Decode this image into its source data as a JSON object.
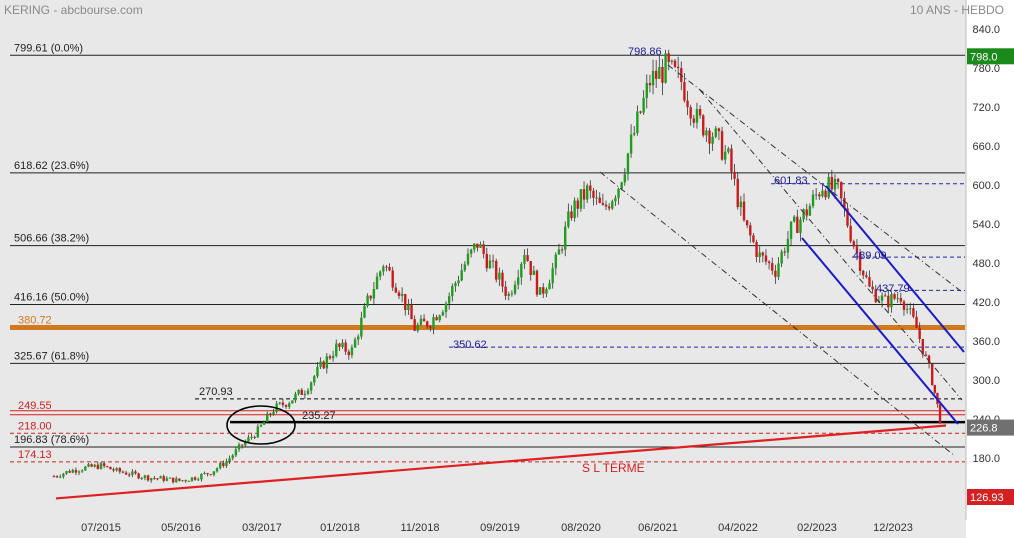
{
  "header": {
    "left": "KERING - abcbourse.com",
    "right": "10 ANS - HEBDO"
  },
  "chart_data": {
    "type": "candlestick",
    "title": "",
    "xlabel": "",
    "ylabel": "",
    "y_ticks": [
      840.0,
      780.0,
      720.0,
      660.0,
      600.0,
      540.0,
      480.0,
      420.0,
      360.0,
      300.0,
      240.0,
      180.0
    ],
    "x_ticks": [
      "07/2015",
      "05/2016",
      "03/2017",
      "01/2018",
      "11/2018",
      "09/2019",
      "08/2020",
      "06/2021",
      "04/2022",
      "02/2023",
      "12/2023"
    ],
    "grid": false,
    "price_badges": [
      {
        "value": "798.0",
        "color": "#1a8a1a"
      },
      {
        "value": "226.8",
        "color": "#707070"
      },
      {
        "value": "126.93",
        "color": "#d42020"
      }
    ],
    "fib_levels": [
      {
        "label": "799.61  (0.0%)",
        "value": 799.61
      },
      {
        "label": "618.62  (23.6%)",
        "value": 618.62
      },
      {
        "label": "506.66  (38.2%)",
        "value": 506.66
      },
      {
        "label": "416.16  (50.0%)",
        "value": 416.16
      },
      {
        "label": "325.67  (61.8%)",
        "value": 325.67
      },
      {
        "label": "196.83  (78.6%)",
        "value": 196.83
      }
    ],
    "horizontal_lines": [
      {
        "label": "380.72",
        "value": 380.72,
        "color": "#d2781e",
        "style": "thick"
      },
      {
        "label": "249.55",
        "value": 249.55,
        "color": "#d42020",
        "style": "double"
      },
      {
        "label": "218.00",
        "value": 218.0,
        "color": "#d42020",
        "style": "dashed"
      },
      {
        "label": "174.13",
        "value": 174.13,
        "color": "#d42020",
        "style": "dashed"
      },
      {
        "label": "270.93",
        "value": 270.93,
        "color": "#000000",
        "style": "dashed"
      },
      {
        "label": "235.27",
        "value": 235.27,
        "color": "#000000",
        "style": "thick"
      }
    ],
    "annotations": [
      {
        "text": "798.86",
        "x": "2021-06",
        "y": 798.86,
        "color": "#1a1a9a"
      },
      {
        "text": "601.83",
        "x": "2022-12",
        "y": 601.83,
        "color": "#1a1a9a"
      },
      {
        "text": "489.09",
        "x": "2023-06",
        "y": 489.09,
        "color": "#1a1a9a"
      },
      {
        "text": "437.79",
        "x": "2023-12",
        "y": 437.79,
        "color": "#1a1a9a"
      },
      {
        "text": "350.62",
        "x": "2019-11",
        "y": 350.62,
        "color": "#1a1a9a"
      },
      {
        "text": "S L TERME",
        "x": "2020-08",
        "y": 172,
        "color": "#d42020"
      }
    ],
    "trend_support": {
      "from": {
        "x": "2015-01",
        "y": 127
      },
      "to": {
        "x": "2024-06",
        "y": 230
      }
    },
    "close_series": {
      "x": [
        "2015-01",
        "2015-03",
        "2015-05",
        "2015-07",
        "2015-09",
        "2015-11",
        "2016-01",
        "2016-03",
        "2016-05",
        "2016-07",
        "2016-09",
        "2016-11",
        "2017-01",
        "2017-03",
        "2017-05",
        "2017-07",
        "2017-09",
        "2017-11",
        "2018-01",
        "2018-03",
        "2018-05",
        "2018-07",
        "2018-09",
        "2018-11",
        "2019-01",
        "2019-03",
        "2019-05",
        "2019-07",
        "2019-09",
        "2019-11",
        "2020-01",
        "2020-03",
        "2020-05",
        "2020-07",
        "2020-09",
        "2020-11",
        "2021-01",
        "2021-03",
        "2021-05",
        "2021-07",
        "2021-09",
        "2021-11",
        "2022-01",
        "2022-03",
        "2022-05",
        "2022-07",
        "2022-09",
        "2022-11",
        "2023-01",
        "2023-03",
        "2023-05",
        "2023-07",
        "2023-09",
        "2023-11",
        "2024-01",
        "2024-03",
        "2024-05",
        "2024-06"
      ],
      "y": [
        152,
        160,
        165,
        168,
        160,
        155,
        150,
        148,
        145,
        150,
        158,
        175,
        200,
        222,
        255,
        268,
        285,
        320,
        350,
        345,
        420,
        480,
        440,
        380,
        390,
        420,
        470,
        510,
        470,
        430,
        500,
        430,
        480,
        560,
        590,
        560,
        600,
        680,
        760,
        780,
        760,
        700,
        680,
        640,
        540,
        490,
        470,
        530,
        560,
        600,
        590,
        510,
        440,
        420,
        430,
        380,
        300,
        240
      ]
    }
  }
}
